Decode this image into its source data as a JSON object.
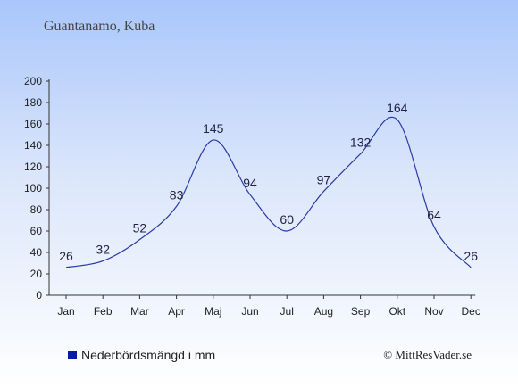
{
  "header": {
    "location": "Guantanamo, Kuba"
  },
  "legend": {
    "label": "Nederbördsmängd i mm",
    "color": "#0a1aa8"
  },
  "credit": {
    "text": "© MittResVader.se"
  },
  "chart_data": {
    "type": "line",
    "categories": [
      "Jan",
      "Feb",
      "Mar",
      "Apr",
      "Maj",
      "Jun",
      "Jul",
      "Aug",
      "Sep",
      "Okt",
      "Nov",
      "Dec"
    ],
    "series": [
      {
        "name": "Nederbördsmängd i mm",
        "values": [
          26,
          32,
          52,
          83,
          145,
          94,
          60,
          97,
          132,
          164,
          64,
          26
        ]
      }
    ],
    "y_ticks": [
      0,
      20,
      40,
      60,
      80,
      100,
      120,
      140,
      160,
      180,
      200
    ],
    "ylim": [
      0,
      200
    ],
    "line_color": "#2b3aa8",
    "grid": false,
    "legend_position": "bottom-left"
  }
}
